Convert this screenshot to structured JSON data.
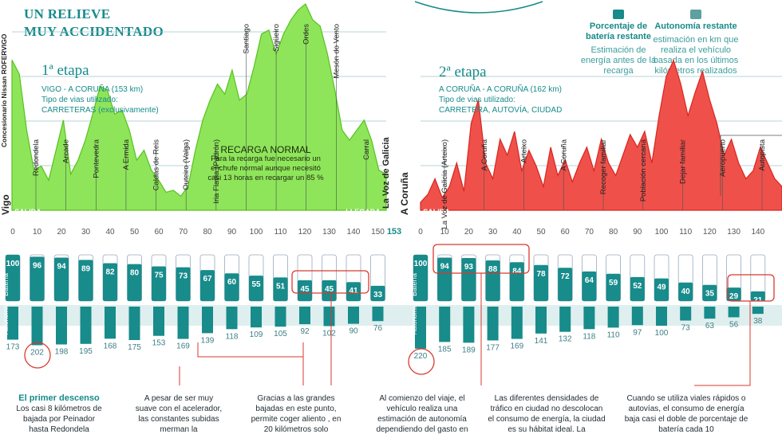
{
  "title_lines": [
    "UN RELIEVE",
    "MUY ACCIDENTADO"
  ],
  "legend": {
    "battery": {
      "heading": "Porcentaje de batería restante",
      "desc": "Estimación de energía antes de la recarga"
    },
    "autonomy": {
      "heading": "Autonomía restante",
      "desc": "estimación en km que realiza el vehículo basada en los últimos kilómetros realizados"
    }
  },
  "stage1": {
    "heading": "1ª etapa",
    "route": "VIGO - A CORUÑA (153 km)",
    "road_label": "Tipo de vias utilizado:",
    "road_types": "CARRETERAS (exclusivamente)",
    "start_city": "Vigo",
    "end_city": "La Voz de Galicia",
    "side_credit": "Concesionario Nissan ROFERVIGO",
    "start_tag": "SALIDA",
    "end_tag": "LLEGADA",
    "final_km": "153"
  },
  "stage2": {
    "heading": "2ª etapa",
    "route": "A CORUÑA - A CORUÑA (162 km)",
    "road_label": "Tipo de vias utilizado:",
    "road_types": "CARRETERA, AUTOVÍA, CIUDAD",
    "start_city": "A Coruña",
    "start_tag": "SALIDA"
  },
  "recarga": {
    "heading": "RECARGA NORMAL",
    "text": "Para la recarga fue necesario un enchufe normal aunque necesitó casi 13 horas en recargar un 85 %"
  },
  "row_labels": {
    "battery": "Batería",
    "autonomy": "Autonomía"
  },
  "notes": [
    {
      "heading": "El primer descenso",
      "text": "Los casi 8 kilómetros de bajada por Peinador hasta Redondela"
    },
    {
      "heading": "",
      "text": "A pesar de ser muy suave con el acelerador, las constantes subidas merman la"
    },
    {
      "heading": "",
      "text": "Gracias a las grandes bajadas en este punto, permite coger aliento , en 20 kilómetros solo"
    },
    {
      "heading": "",
      "text": "Al comienzo del viaje, el vehículo realiza una estimación de autonomía dependiendo del gasto en"
    },
    {
      "heading": "",
      "text": "Las diferentes densidades de tráfico en ciudad no descolocan el consumo de energía, la ciudad es su hábitat ideal. La"
    },
    {
      "heading": "",
      "text": "Cuando se utiliza viales rápidos o autovías, el consumo de energía baja casi el doble de porcentaje de batería cada 10"
    }
  ],
  "colors": {
    "accent": "#178a8a",
    "stage1_fill": "#8fe55a",
    "stage1_stroke": "#56c21e",
    "stage2_fill": "#f0504a",
    "stage2_stroke": "#d62720",
    "battery": "#188b8b",
    "highlight": "#d83a30"
  },
  "chart_data": [
    {
      "type": "area",
      "title": "1ª etapa",
      "x_ticks": [
        "0",
        "10",
        "20",
        "30",
        "40",
        "50",
        "60",
        "70",
        "80",
        "90",
        "100",
        "110",
        "120",
        "130",
        "140",
        "150"
      ],
      "profile": {
        "x": [
          0,
          3,
          6,
          9,
          12,
          15,
          18,
          21,
          24,
          27,
          30,
          33,
          36,
          39,
          42,
          45,
          48,
          51,
          54,
          57,
          60,
          63,
          66,
          69,
          72,
          75,
          78,
          81,
          84,
          87,
          90,
          93,
          96,
          99,
          102,
          105,
          108,
          111,
          114,
          117,
          120,
          123,
          126,
          129,
          132,
          135,
          138,
          141,
          144,
          147,
          150,
          153
        ],
        "y": [
          75,
          68,
          40,
          20,
          22,
          15,
          30,
          45,
          18,
          25,
          35,
          48,
          62,
          60,
          48,
          50,
          40,
          25,
          30,
          20,
          15,
          9,
          10,
          7,
          12,
          30,
          45,
          55,
          63,
          58,
          70,
          55,
          58,
          72,
          88,
          90,
          78,
          88,
          95,
          100,
          103,
          95,
          92,
          78,
          60,
          40,
          35,
          40,
          45,
          35,
          20,
          18
        ]
      },
      "places": [
        "Redondela",
        "Arcade",
        "Pontevedra",
        "A Ermida",
        "Caldas de Reis",
        "Outeiro (Valga)",
        "Iria Flavia (Padrón)",
        "Santiago",
        "Sigüeiro",
        "Ordes",
        "Mesón do Vento",
        "Carral"
      ],
      "battery_pct": [
        100,
        96,
        94,
        89,
        82,
        80,
        75,
        73,
        67,
        60,
        55,
        51,
        45,
        45,
        41,
        33
      ],
      "autonomy_km": [
        173,
        202,
        198,
        195,
        168,
        175,
        153,
        169,
        139,
        118,
        109,
        105,
        92,
        102,
        90,
        76
      ]
    },
    {
      "type": "area",
      "title": "2ª etapa",
      "x_ticks": [
        "0",
        "10",
        "20",
        "30",
        "40",
        "50",
        "60",
        "70",
        "80",
        "90",
        "100",
        "110",
        "120",
        "130",
        "140"
      ],
      "profile": {
        "x": [
          0,
          3,
          6,
          9,
          12,
          15,
          18,
          21,
          24,
          27,
          30,
          33,
          36,
          39,
          42,
          45,
          48,
          51,
          54,
          57,
          60,
          63,
          66,
          69,
          72,
          75,
          78,
          81,
          84,
          87,
          90,
          93,
          96,
          99,
          102,
          105,
          108,
          111,
          114,
          117,
          120,
          123,
          126,
          129,
          132,
          135,
          138,
          141,
          144,
          147,
          150
        ],
        "y": [
          5,
          10,
          20,
          8,
          15,
          30,
          12,
          55,
          70,
          30,
          20,
          45,
          35,
          50,
          25,
          38,
          28,
          15,
          40,
          22,
          32,
          18,
          30,
          40,
          25,
          45,
          30,
          22,
          35,
          48,
          40,
          50,
          30,
          60,
          85,
          95,
          80,
          60,
          75,
          88,
          70,
          55,
          35,
          45,
          30,
          20,
          25,
          40,
          30,
          20,
          15
        ]
      },
      "places": [
        "La Voz de Galicia (Arteixo)",
        "A Coruña",
        "Arteixo",
        "A Coruña",
        "Recoger familiar",
        "Población cercana",
        "Dejar familiar",
        "Aeropuerto",
        "Autopista"
      ],
      "battery_pct": [
        100,
        94,
        93,
        88,
        84,
        78,
        72,
        64,
        59,
        52,
        49,
        40,
        35,
        29,
        21
      ],
      "autonomy_km": [
        220,
        185,
        189,
        177,
        169,
        141,
        132,
        118,
        110,
        97,
        100,
        73,
        63,
        56,
        38
      ]
    }
  ]
}
